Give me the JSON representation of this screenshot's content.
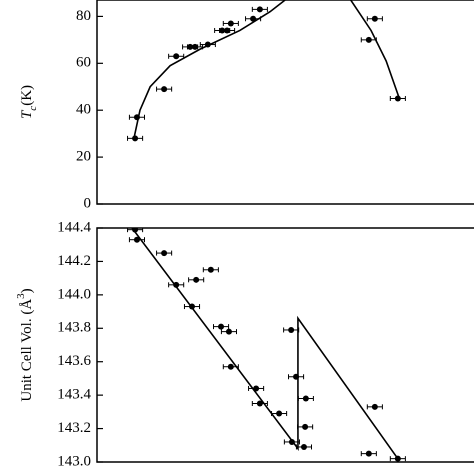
{
  "chart_data": [
    {
      "type": "scatter",
      "ylabel": {
        "main": "T",
        "sub": "c",
        "rest": "(K)"
      },
      "xlim": [
        0,
        1
      ],
      "ylim": [
        0,
        87
      ],
      "yticks": [
        0,
        20,
        40,
        60,
        80
      ],
      "series": [
        {
          "color": "#000000",
          "xerr": 0.02,
          "x": [
            0.101,
            0.106,
            0.178,
            0.21,
            0.247,
            0.26,
            0.294,
            0.332,
            0.345,
            0.355,
            0.414,
            0.432,
            0.737,
            0.721,
            0.798
          ],
          "values": [
            28,
            37,
            49,
            63,
            67,
            67,
            68,
            74,
            74,
            77,
            79,
            83,
            79,
            70,
            45
          ]
        },
        {
          "type": "line",
          "color": "#000000",
          "x": [
            0.098,
            0.114,
            0.141,
            0.194,
            0.273,
            0.379,
            0.459,
            0.499,
            null,
            0.673,
            0.727,
            0.767,
            0.802
          ],
          "values": [
            28,
            40,
            50,
            59,
            66,
            74,
            82,
            87,
            null,
            87,
            74,
            61,
            45
          ]
        }
      ]
    },
    {
      "type": "scatter",
      "ylabel": {
        "main": "Unit Cell Vol. (Å",
        "sup": "3",
        "rest": ")"
      },
      "xlim": [
        0,
        1
      ],
      "ylim": [
        143.0,
        144.4
      ],
      "yticks": [
        {
          "value": 143,
          "label": "143.0"
        },
        143.2,
        143.4,
        143.6,
        143.8,
        {
          "value": 144,
          "label": "144.0"
        },
        144.2,
        144.4
      ],
      "series": [
        {
          "color": "#000000",
          "xerr": 0.02,
          "x": [
            0.101,
            0.106,
            0.178,
            0.21,
            0.252,
            0.263,
            0.302,
            0.329,
            0.35,
            0.355,
            0.422,
            0.432,
            0.483,
            0.515,
            0.528,
            0.552,
            0.554,
            0.517,
            0.549,
            0.721,
            0.737,
            0.798
          ],
          "values": [
            144.39,
            144.33,
            144.25,
            144.06,
            143.93,
            144.09,
            144.15,
            143.81,
            143.78,
            143.57,
            143.44,
            143.35,
            143.29,
            143.79,
            143.51,
            143.21,
            143.38,
            143.12,
            143.09,
            143.05,
            143.33,
            143.02
          ]
        },
        {
          "type": "line",
          "color": "#000000",
          "x": [
            0.093,
            0.533,
            0.533,
            0.798
          ],
          "values": [
            144.4,
            143.08,
            143.86,
            143.02
          ]
        }
      ]
    }
  ]
}
